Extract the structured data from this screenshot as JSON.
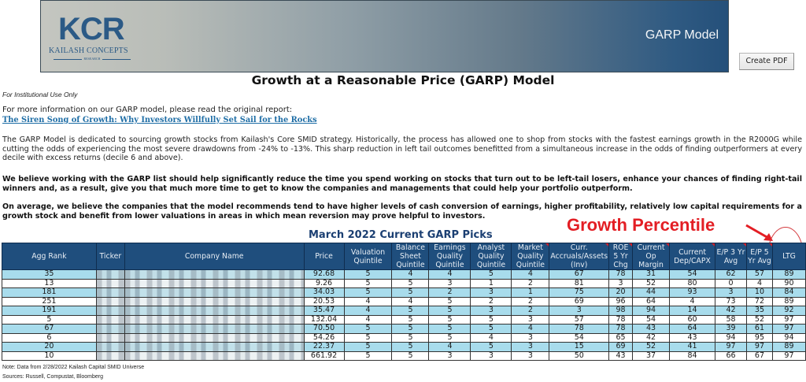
{
  "header": {
    "logo_text": "KCR",
    "logo_company": "KAILASH CONCEPTS",
    "logo_tagline": "RESEARCH",
    "banner_title": "GARP Model",
    "create_pdf_label": "Create PDF"
  },
  "page": {
    "title": "Growth at a Reasonable Price (GARP) Model",
    "institutional_note": "For Institutional Use Only",
    "more_info": "For more information on our GARP model, please read the original report:",
    "report_link": "The Siren Song of Growth: Why Investors Willfully Set Sail for the Rocks",
    "paragraph1": "The GARP Model is dedicated to sourcing growth stocks from Kailash's Core SMID strategy. Historically, the process has allowed one to shop from stocks with the fastest earnings growth in the R2000G while cutting the odds of experiencing the most severe drawdowns from -24% to -13%. This sharp reduction in left tail outcomes benefitted from a simultaneous increase in the odds of finding outperformers at every decile with excess returns (decile 6 and above).",
    "paragraph2": "We believe working with the GARP list should help significantly reduce the time you spend working on stocks that turn out to be left-tail losers, enhance your chances of finding right-tail winners and, as a result, give you that much more time to get to know the companies and managements that could help your portfolio outperform.",
    "paragraph3": "On average, we believe the companies that the model recommends tend to have higher levels of cash conversion of earnings, higher profitability, relatively low capital requirements for a growth stock and benefit from lower valuations in areas in which mean reversion may prove helpful to investors."
  },
  "annotation": {
    "label": "Growth Percentile",
    "color": "#e31e24"
  },
  "table": {
    "title": "March 2022 Current GARP Picks",
    "columns": [
      "Agg Rank",
      "Ticker",
      "Company Name",
      "Price",
      "Valuation Quintile",
      "Balance Sheet Quintile",
      "Earnings Quality Quintile",
      "Analyst Quality Quintile",
      "Market Quality Quintile",
      "Curr. Accruals/Assets (Inv)",
      "ROE 5 Yr Chg",
      "Current Op Margin",
      "Current Dep/CAPX",
      "E/P 3 Yr Avg",
      "E/P 5 Yr Avg",
      "LTG"
    ],
    "header_color": "#1f4e7d",
    "stripe_color": "#a8dcec",
    "rows": [
      {
        "rank": "35",
        "ticker": "",
        "company": "",
        "price": "92.68",
        "val": "5",
        "bal": "4",
        "earn": "4",
        "analyst": "5",
        "market": "4",
        "accruals": "67",
        "roe": "78",
        "opm": "31",
        "dep": "54",
        "ep3": "62",
        "ep5": "57",
        "ltg": "89"
      },
      {
        "rank": "13",
        "ticker": "",
        "company": "",
        "price": "9.26",
        "val": "5",
        "bal": "5",
        "earn": "3",
        "analyst": "1",
        "market": "2",
        "accruals": "81",
        "roe": "3",
        "opm": "52",
        "dep": "80",
        "ep3": "0",
        "ep5": "4",
        "ltg": "90"
      },
      {
        "rank": "181",
        "ticker": "",
        "company": "",
        "price": "34.03",
        "val": "5",
        "bal": "5",
        "earn": "2",
        "analyst": "3",
        "market": "1",
        "accruals": "75",
        "roe": "20",
        "opm": "44",
        "dep": "93",
        "ep3": "3",
        "ep5": "10",
        "ltg": "84"
      },
      {
        "rank": "251",
        "ticker": "",
        "company": "",
        "price": "20.53",
        "val": "4",
        "bal": "4",
        "earn": "5",
        "analyst": "2",
        "market": "2",
        "accruals": "69",
        "roe": "96",
        "opm": "64",
        "dep": "4",
        "ep3": "73",
        "ep5": "72",
        "ltg": "89"
      },
      {
        "rank": "191",
        "ticker": "",
        "company": "",
        "price": "35.47",
        "val": "4",
        "bal": "5",
        "earn": "5",
        "analyst": "3",
        "market": "2",
        "accruals": "3",
        "roe": "98",
        "opm": "94",
        "dep": "14",
        "ep3": "42",
        "ep5": "35",
        "ltg": "92"
      },
      {
        "rank": "5",
        "ticker": "",
        "company": "",
        "price": "132.04",
        "val": "4",
        "bal": "5",
        "earn": "5",
        "analyst": "5",
        "market": "3",
        "accruals": "57",
        "roe": "78",
        "opm": "54",
        "dep": "60",
        "ep3": "58",
        "ep5": "52",
        "ltg": "97"
      },
      {
        "rank": "67",
        "ticker": "",
        "company": "",
        "price": "70.50",
        "val": "5",
        "bal": "5",
        "earn": "5",
        "analyst": "5",
        "market": "4",
        "accruals": "78",
        "roe": "78",
        "opm": "43",
        "dep": "64",
        "ep3": "39",
        "ep5": "61",
        "ltg": "97"
      },
      {
        "rank": "6",
        "ticker": "",
        "company": "",
        "price": "54.26",
        "val": "5",
        "bal": "5",
        "earn": "5",
        "analyst": "4",
        "market": "3",
        "accruals": "54",
        "roe": "65",
        "opm": "42",
        "dep": "43",
        "ep3": "94",
        "ep5": "95",
        "ltg": "94"
      },
      {
        "rank": "20",
        "ticker": "",
        "company": "",
        "price": "22.37",
        "val": "5",
        "bal": "5",
        "earn": "4",
        "analyst": "5",
        "market": "3",
        "accruals": "15",
        "roe": "69",
        "opm": "52",
        "dep": "41",
        "ep3": "97",
        "ep5": "97",
        "ltg": "89"
      },
      {
        "rank": "10",
        "ticker": "",
        "company": "",
        "price": "661.92",
        "val": "5",
        "bal": "5",
        "earn": "3",
        "analyst": "3",
        "market": "3",
        "accruals": "50",
        "roe": "43",
        "opm": "37",
        "dep": "84",
        "ep3": "66",
        "ep5": "67",
        "ltg": "97"
      }
    ]
  },
  "footer": {
    "note": "Note: Data from 2/28/2022 Kailash Capital SMID Universe",
    "sources": "Sources: Russell, Compustat, Bloomberg"
  }
}
